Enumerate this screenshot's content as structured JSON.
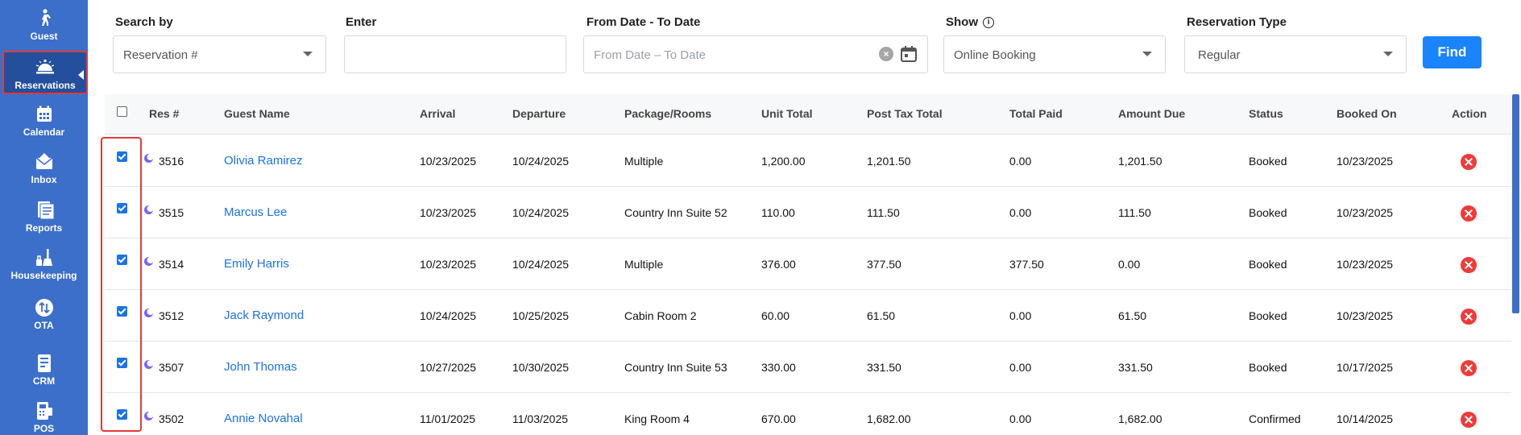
{
  "sidebar": {
    "items": [
      {
        "label": "Guest",
        "icon": "guest-icon"
      },
      {
        "label": "Reservations",
        "icon": "bell-icon"
      },
      {
        "label": "Calendar",
        "icon": "calendar-icon"
      },
      {
        "label": "Inbox",
        "icon": "envelope-icon"
      },
      {
        "label": "Reports",
        "icon": "document-icon"
      },
      {
        "label": "Housekeeping",
        "icon": "broom-icon"
      },
      {
        "label": "OTA",
        "icon": "swap-arrows-icon"
      },
      {
        "label": "CRM",
        "icon": "crm-icon"
      },
      {
        "label": "POS",
        "icon": "pos-icon"
      }
    ],
    "active": "Reservations"
  },
  "filters": {
    "search_by": {
      "label": "Search by",
      "value": "Reservation #"
    },
    "enter": {
      "label": "Enter",
      "value": ""
    },
    "date_range": {
      "label": "From Date - To Date",
      "placeholder": "From Date – To Date"
    },
    "show": {
      "label": "Show",
      "value": "Online Booking"
    },
    "reservation_type": {
      "label": "Reservation Type",
      "value": "Regular"
    },
    "find_label": "Find"
  },
  "table": {
    "headers": {
      "res": "Res #",
      "guest": "Guest Name",
      "arrival": "Arrival",
      "departure": "Departure",
      "package": "Package/Rooms",
      "unit_total": "Unit Total",
      "post_tax_total": "Post Tax Total",
      "total_paid": "Total Paid",
      "amount_due": "Amount Due",
      "status": "Status",
      "booked_on": "Booked On",
      "action": "Action"
    },
    "rows": [
      {
        "res": "3516",
        "guest": "Olivia Ramirez",
        "arrival": "10/23/2025",
        "departure": "10/24/2025",
        "package": "Multiple",
        "unit_total": "1,200.00",
        "post_tax_total": "1,201.50",
        "total_paid": "0.00",
        "amount_due": "1,201.50",
        "status": "Booked",
        "booked_on": "10/23/2025",
        "checked": true
      },
      {
        "res": "3515",
        "guest": "Marcus Lee",
        "arrival": "10/23/2025",
        "departure": "10/24/2025",
        "package": "Country Inn Suite 52",
        "unit_total": "110.00",
        "post_tax_total": "111.50",
        "total_paid": "0.00",
        "amount_due": "111.50",
        "status": "Booked",
        "booked_on": "10/23/2025",
        "checked": true
      },
      {
        "res": "3514",
        "guest": "Emily Harris",
        "arrival": "10/23/2025",
        "departure": "10/24/2025",
        "package": "Multiple",
        "unit_total": "376.00",
        "post_tax_total": "377.50",
        "total_paid": "377.50",
        "amount_due": "0.00",
        "status": "Booked",
        "booked_on": "10/23/2025",
        "checked": true
      },
      {
        "res": "3512",
        "guest": "Jack Raymond",
        "arrival": "10/24/2025",
        "departure": "10/25/2025",
        "package": "Cabin Room 2",
        "unit_total": "60.00",
        "post_tax_total": "61.50",
        "total_paid": "0.00",
        "amount_due": "61.50",
        "status": "Booked",
        "booked_on": "10/23/2025",
        "checked": true
      },
      {
        "res": "3507",
        "guest": "John Thomas",
        "arrival": "10/27/2025",
        "departure": "10/30/2025",
        "package": "Country Inn Suite 53",
        "unit_total": "330.00",
        "post_tax_total": "331.50",
        "total_paid": "0.00",
        "amount_due": "331.50",
        "status": "Booked",
        "booked_on": "10/17/2025",
        "checked": true
      },
      {
        "res": "3502",
        "guest": "Annie Novahal",
        "arrival": "11/01/2025",
        "departure": "11/03/2025",
        "package": "King Room 4",
        "unit_total": "670.00",
        "post_tax_total": "1,682.00",
        "total_paid": "0.00",
        "amount_due": "1,682.00",
        "status": "Confirmed",
        "booked_on": "10/14/2025",
        "checked": true
      }
    ]
  },
  "colors": {
    "sidebar": "#3c6fc9",
    "sidebar_active": "#244f9c",
    "accent": "#1a84ff",
    "link": "#1a73e8",
    "delete": "#ef3b3b",
    "highlight": "#e53935"
  }
}
